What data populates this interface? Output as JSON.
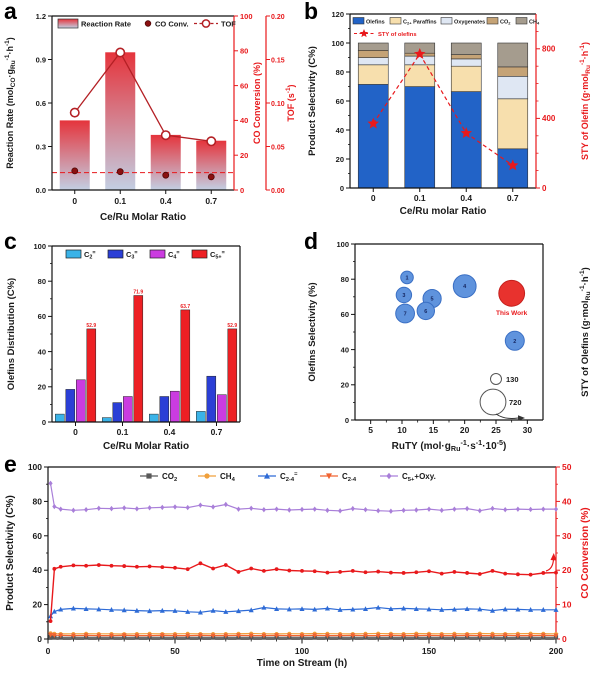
{
  "figure": {
    "background": "#ffffff"
  },
  "chart_data": [
    {
      "panel": "a",
      "type": "bar",
      "categories": [
        "0",
        "0.1",
        "0.4",
        "0.7"
      ],
      "xlabel": "Ce/Ru Molar Ratio",
      "left_axis": {
        "label": "Reaction Rate (mol_{CO}·g_{Ru}^{-1}·h^{-1})",
        "range": [
          0,
          1.2
        ],
        "ticks": [
          "0.0",
          "0.3",
          "0.6",
          "0.9",
          "1.2"
        ],
        "color": "#1a1a1a"
      },
      "right_axis_1": {
        "label": "CO Conversion (%)",
        "range": [
          0,
          100
        ],
        "ticks": [
          "0",
          "20",
          "40",
          "60",
          "80",
          "100"
        ],
        "color": "#e8191c"
      },
      "right_axis_2": {
        "label": "TOF (s^{-1})",
        "range": [
          0,
          0.2
        ],
        "ticks": [
          "0.00",
          "0.05",
          "0.10",
          "0.15",
          "0.20"
        ],
        "color": "#e8191c"
      },
      "series": [
        {
          "name": "Reaction Rate",
          "type": "bar",
          "axis": "left",
          "values": [
            0.48,
            0.95,
            0.38,
            0.34
          ],
          "gradient": [
            "#e5343c",
            "#c3cfe3"
          ]
        },
        {
          "name": "CO Conv.",
          "type": "scatter",
          "axis": "right1",
          "values": [
            11,
            10.5,
            8.5,
            7.5
          ],
          "color": "#8b1010"
        },
        {
          "name": "TOF",
          "type": "line",
          "axis": "right2",
          "values": [
            0.089,
            0.158,
            0.063,
            0.056
          ],
          "color": "#b42025"
        }
      ],
      "reference_line": {
        "axis": "right1",
        "value": 10,
        "color": "#e8191c"
      }
    },
    {
      "panel": "b",
      "type": "stacked-bar",
      "categories": [
        "0",
        "0.1",
        "0.4",
        "0.7"
      ],
      "xlabel": "Ce/Ru molar Ratio",
      "left_axis": {
        "label": "Product Selectivity (C%)",
        "range": [
          0,
          120
        ],
        "ticks": [
          "0",
          "20",
          "40",
          "60",
          "80",
          "100",
          "120"
        ],
        "color": "#1a1a1a"
      },
      "right_axis": {
        "label": "STY of Olefin (g·mol_{Ru}^{-1}·h^{-1})",
        "range": [
          0,
          1000
        ],
        "ticks": [
          "0",
          "400",
          "800"
        ],
        "color": "#e8191c"
      },
      "series": [
        {
          "name": "Olefins",
          "color": "#2263c7",
          "values": [
            71.5,
            70,
            66.5,
            27
          ]
        },
        {
          "name": "C_{2+} Paraffins",
          "color": "#f7dfad",
          "values": [
            13.5,
            15,
            17.5,
            34.5
          ]
        },
        {
          "name": "Oxygenates",
          "color": "#dfe7f3",
          "values": [
            5,
            6,
            5,
            15.5
          ]
        },
        {
          "name": "CO_{2}",
          "color": "#c5a376",
          "values": [
            5,
            2,
            3,
            6.5
          ]
        },
        {
          "name": "CH_{4}",
          "color": "#a59c8e",
          "values": [
            5,
            7,
            8,
            16.5
          ]
        }
      ],
      "line_series": {
        "name": "STY of olefins",
        "axis": "right",
        "values": [
          370,
          770,
          315,
          130
        ],
        "color": "#e8191c"
      }
    },
    {
      "panel": "c",
      "type": "grouped-bar",
      "categories": [
        "0",
        "0.1",
        "0.4",
        "0.7"
      ],
      "xlabel": "Ce/Ru Molar Ratio",
      "left_axis": {
        "label": "Olefins Distribution (C%)",
        "range": [
          0,
          100
        ],
        "ticks": [
          "0",
          "20",
          "40",
          "60",
          "80",
          "100"
        ],
        "color": "#1a1a1a"
      },
      "series": [
        {
          "name": "C_{2}^{=}",
          "color": "#3ab3e8",
          "values": [
            4.5,
            2.5,
            4.5,
            6
          ]
        },
        {
          "name": "C_{3}^{=}",
          "color": "#2b3fd6",
          "values": [
            18.5,
            11,
            14.5,
            26
          ]
        },
        {
          "name": "C_{4}^{=}",
          "color": "#cb3ce0",
          "values": [
            24,
            14.5,
            17.5,
            15.5
          ]
        },
        {
          "name": "C_{5+}^{=}",
          "color": "#ed2024",
          "values": [
            52.9,
            71.9,
            63.7,
            52.9
          ],
          "value_labels": [
            "52.9",
            "71.9",
            "63.7",
            "52.9"
          ]
        }
      ]
    },
    {
      "panel": "d",
      "type": "scatter",
      "xlabel": "RuTY (mol·g_{Ru}^{-1}·s^{-1}·10^{-5})",
      "x_axis": {
        "range": [
          2.5,
          32.5
        ],
        "ticks": [
          "5",
          "10",
          "15",
          "20",
          "25",
          "30"
        ]
      },
      "left_axis": {
        "label": "Olefins Selectivity (%)",
        "range": [
          0,
          100
        ],
        "ticks": [
          "0",
          "20",
          "40",
          "60",
          "80",
          "100"
        ]
      },
      "right_axis_label": "STY of Olefins (g·mol_{Ru}^{-1}·h^{-1})",
      "points": [
        {
          "id": "1",
          "x": 10.8,
          "y": 81,
          "sty": 170,
          "color": "#5f93dd"
        },
        {
          "id": "3",
          "x": 10.3,
          "y": 71,
          "sty": 260,
          "color": "#5f93dd"
        },
        {
          "id": "7",
          "x": 10.5,
          "y": 60.5,
          "sty": 380,
          "color": "#5f93dd"
        },
        {
          "id": "6",
          "x": 13.8,
          "y": 62,
          "sty": 330,
          "color": "#5f93dd"
        },
        {
          "id": "5",
          "x": 14.8,
          "y": 69,
          "sty": 360,
          "color": "#5f93dd"
        },
        {
          "id": "4",
          "x": 20,
          "y": 76,
          "sty": 560,
          "color": "#5f93dd"
        },
        {
          "id": "2",
          "x": 28,
          "y": 45,
          "sty": 390,
          "color": "#5f93dd"
        },
        {
          "id": "This Work",
          "x": 27.5,
          "y": 72,
          "sty": 720,
          "color": "#e8322e",
          "highlight": true
        }
      ],
      "size_legend": [
        {
          "sty": 130,
          "label": "130"
        },
        {
          "sty": 720,
          "label": "720"
        }
      ]
    },
    {
      "panel": "e",
      "type": "line",
      "xlabel": "Time on Stream (h)",
      "x_axis": {
        "range": [
          0,
          200
        ],
        "ticks": [
          "0",
          "50",
          "100",
          "150",
          "200"
        ]
      },
      "left_axis": {
        "label": "Product Selectivity (C%)",
        "range": [
          0,
          100
        ],
        "ticks": [
          "0",
          "20",
          "40",
          "60",
          "80",
          "100"
        ],
        "color": "#1a1a1a"
      },
      "right_axis": {
        "label": "CO Conversion (%)",
        "range": [
          0,
          50
        ],
        "ticks": [
          "0",
          "10",
          "20",
          "30",
          "40",
          "50"
        ],
        "color": "#e8191c"
      },
      "t": [
        1,
        2.5,
        5,
        10,
        15,
        20,
        25,
        30,
        35,
        40,
        45,
        50,
        55,
        60,
        65,
        70,
        75,
        80,
        85,
        90,
        95,
        100,
        105,
        110,
        115,
        120,
        125,
        130,
        135,
        140,
        145,
        150,
        155,
        160,
        165,
        170,
        175,
        180,
        185,
        190,
        195,
        200
      ],
      "series": [
        {
          "name": "CO_{2}",
          "axis": "left",
          "marker": "square",
          "color": "#595959",
          "in_legend": true,
          "values": [
            1.2,
            1.0,
            1.0,
            1.0,
            1.0,
            1.0,
            1.0,
            1.0,
            1.0,
            1.0,
            1.0,
            1.0,
            1.0,
            1.0,
            1.0,
            1.0,
            1.0,
            1.0,
            1.0,
            1.0,
            1.0,
            1.0,
            1.0,
            1.0,
            1.0,
            1.0,
            1.0,
            1.0,
            1.0,
            1.0,
            1.0,
            1.0,
            1.0,
            1.0,
            1.0,
            1.0,
            1.0,
            1.0,
            1.0,
            1.0,
            1.0,
            1.0
          ]
        },
        {
          "name": "CH_{4}",
          "axis": "left",
          "marker": "circle",
          "color": "#f0a03c",
          "in_legend": true,
          "values": [
            3.4,
            3.1,
            3.0,
            3.0,
            3.1,
            3.0,
            3.0,
            2.9,
            3.0,
            3.1,
            3.0,
            3.0,
            3.1,
            3.0,
            3.0,
            3.0,
            3.1,
            3.2,
            3.0,
            3.0,
            3.1,
            3.0,
            3.2,
            3.1,
            3.0,
            3.0,
            3.1,
            3.2,
            3.1,
            3.0,
            3.2,
            3.1,
            3.0,
            3.1,
            3.0,
            3.2,
            3.1,
            3.0,
            3.1,
            3.2,
            3.1,
            3.0
          ]
        },
        {
          "name": "C_{2-4}",
          "axis": "left",
          "marker": "triangle-down",
          "color": "#f06432",
          "in_legend": true,
          "values": [
            2.4,
            2.2,
            2.1,
            2.0,
            2.1,
            2.0,
            2.0,
            2.1,
            2.0,
            2.0,
            2.1,
            2.0,
            2.0,
            2.1,
            2.0,
            2.0,
            2.1,
            2.0,
            2.0,
            2.1,
            2.0,
            2.0,
            2.1,
            2.0,
            2.0,
            2.1,
            2.0,
            2.0,
            2.1,
            2.0,
            2.0,
            2.1,
            2.0,
            2.0,
            2.1,
            2.0,
            2.0,
            2.1,
            2.0,
            2.0,
            2.1,
            2.0
          ]
        },
        {
          "name": "C_{2-4}^{=}",
          "axis": "left",
          "marker": "triangle-up",
          "color": "#2e6bd6",
          "in_legend": true,
          "values": [
            13.3,
            16.0,
            17.2,
            17.8,
            17.5,
            17.3,
            17.0,
            16.8,
            16.5,
            16.3,
            16.5,
            16.4,
            15.8,
            15.5,
            16.5,
            15.8,
            16.3,
            16.8,
            18.3,
            17.5,
            17.3,
            17.5,
            17.2,
            17.8,
            17.0,
            17.2,
            17.5,
            18.3,
            17.5,
            17.8,
            17.5,
            17.3,
            17.0,
            17.2,
            17.5,
            17.3,
            16.5,
            17.3,
            17.2,
            17.0,
            17.0,
            17.0
          ]
        },
        {
          "name": "C_{5+}+Oxy.",
          "axis": "left",
          "marker": "diamond",
          "color": "#a97fd9",
          "in_legend": true,
          "values": [
            90.5,
            77.0,
            75.5,
            74.8,
            75.2,
            76.0,
            75.8,
            76.2,
            75.7,
            76.3,
            76.5,
            76.8,
            76.4,
            77.8,
            76.8,
            78.2,
            75.5,
            76.0,
            75.2,
            75.5,
            75.0,
            75.3,
            75.5,
            74.8,
            74.5,
            75.8,
            75.2,
            74.6,
            74.3,
            74.8,
            75.0,
            75.5,
            74.8,
            75.5,
            75.8,
            74.6,
            75.9,
            75.2,
            75.5,
            75.3,
            75.5,
            75.5
          ]
        },
        {
          "name": "CO Conversion",
          "axis": "right",
          "marker": "circle",
          "color": "#e8191c",
          "in_legend": false,
          "values": [
            5.2,
            20.4,
            21.0,
            21.4,
            21.3,
            21.5,
            21.3,
            21.2,
            21.0,
            21.1,
            20.9,
            20.7,
            20.3,
            22.0,
            20.5,
            21.5,
            19.5,
            20.5,
            19.8,
            20.3,
            19.9,
            19.8,
            19.7,
            19.3,
            19.5,
            19.8,
            19.4,
            19.6,
            19.3,
            19.2,
            19.4,
            19.7,
            19.0,
            19.5,
            19.2,
            18.9,
            19.8,
            19.0,
            18.8,
            18.7,
            19.2,
            19.3
          ]
        }
      ],
      "legend_order": [
        0,
        1,
        3,
        2,
        4
      ],
      "legend_labels": [
        "CO_{2}",
        "CH_{4}",
        "C_{2-4}^{=}",
        "C_{2-4}",
        "C_{5+}+Oxy."
      ]
    }
  ]
}
